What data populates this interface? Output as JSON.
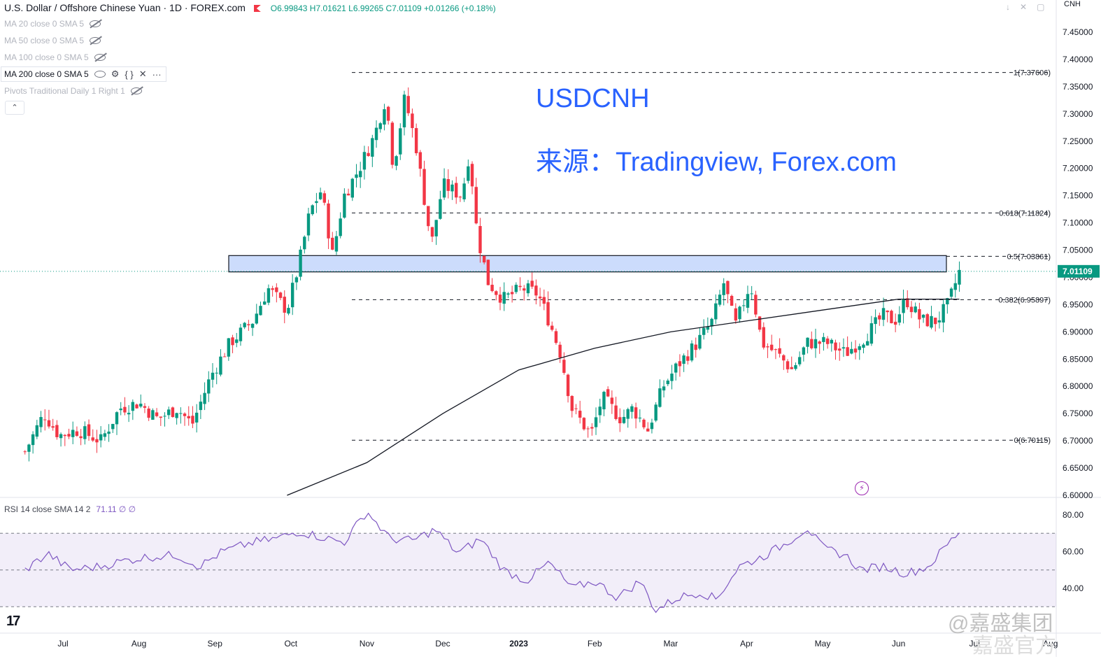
{
  "header": {
    "symbol": "U.S. Dollar / Offshore Chinese Yuan · 1D · FOREX.com",
    "ohlc": "O6.99843 H7.01621 L6.99265 C7.01109 +0.01266 (+0.18%)"
  },
  "unit_label": "CNH",
  "indicators": [
    {
      "label": "MA 20 close 0 SMA 5",
      "visible": false
    },
    {
      "label": "MA 50 close 0 SMA 5",
      "visible": false
    },
    {
      "label": "MA 100 close 0 SMA 5",
      "visible": false
    },
    {
      "label": "MA 200 close 0 SMA 5",
      "visible": true
    },
    {
      "label": "Pivots Traditional Daily 1 Right 1",
      "visible": false
    }
  ],
  "annotation": {
    "title": "USDCNH",
    "source": "来源：Tradingview, Forex.com"
  },
  "rsi": {
    "label": "RSI 14 close SMA 14 2",
    "value": "71.11 ∅ ∅"
  },
  "watermark": "@嘉盛集团",
  "watermark2": "嘉盛官方",
  "logo_text": "17",
  "chart_data": {
    "type": "candlestick",
    "price_axis": {
      "min": 6.6,
      "max": 7.45,
      "ticks": [
        "7.45000",
        "7.40000",
        "7.35000",
        "7.30000",
        "7.25000",
        "7.20000",
        "7.15000",
        "7.10000",
        "7.05000",
        "7.00000",
        "6.95000",
        "6.90000",
        "6.85000",
        "6.80000",
        "6.75000",
        "6.70000",
        "6.65000",
        "6.60000"
      ]
    },
    "last_price": {
      "value": 7.01109,
      "label": "7.01109"
    },
    "x_axis_labels": [
      {
        "label": "Jul",
        "m": 0.5
      },
      {
        "label": "Aug",
        "m": 1.5
      },
      {
        "label": "Sep",
        "m": 2.5
      },
      {
        "label": "Oct",
        "m": 3.5
      },
      {
        "label": "Nov",
        "m": 4.5
      },
      {
        "label": "Dec",
        "m": 5.5
      },
      {
        "label": "2023",
        "m": 6.5
      },
      {
        "label": "Feb",
        "m": 7.5
      },
      {
        "label": "Mar",
        "m": 8.5
      },
      {
        "label": "Apr",
        "m": 9.5
      },
      {
        "label": "May",
        "m": 10.5
      },
      {
        "label": "Jun",
        "m": 11.5
      },
      {
        "label": "Jul",
        "m": 12.5
      },
      {
        "label": "Aug",
        "m": 13.5
      }
    ],
    "fib_levels": [
      {
        "label": "1(7.37606)",
        "value": 7.37606
      },
      {
        "label": "0.618(7.11824)",
        "value": 7.11824
      },
      {
        "label": "0.5(7.03861)",
        "value": 7.03861
      },
      {
        "label": "0.382(6.95897)",
        "value": 6.95897
      },
      {
        "label": "0(6.70115)",
        "value": 6.70115
      }
    ],
    "zone": {
      "from_price": 7.01,
      "to_price": 7.04
    },
    "close_path": [
      [
        0.0,
        6.68
      ],
      [
        0.25,
        6.75
      ],
      [
        0.45,
        6.71
      ],
      [
        0.7,
        6.72
      ],
      [
        1.0,
        6.7
      ],
      [
        1.25,
        6.76
      ],
      [
        1.5,
        6.77
      ],
      [
        1.75,
        6.74
      ],
      [
        2.0,
        6.76
      ],
      [
        2.2,
        6.73
      ],
      [
        2.45,
        6.82
      ],
      [
        2.7,
        6.88
      ],
      [
        3.0,
        6.92
      ],
      [
        3.2,
        6.98
      ],
      [
        3.45,
        6.94
      ],
      [
        3.6,
        7.02
      ],
      [
        3.75,
        7.12
      ],
      [
        3.9,
        7.16
      ],
      [
        4.05,
        7.04
      ],
      [
        4.2,
        7.15
      ],
      [
        4.4,
        7.2
      ],
      [
        4.6,
        7.26
      ],
      [
        4.75,
        7.33
      ],
      [
        4.85,
        7.2
      ],
      [
        5.0,
        7.33
      ],
      [
        5.15,
        7.24
      ],
      [
        5.35,
        7.06
      ],
      [
        5.5,
        7.17
      ],
      [
        5.75,
        7.15
      ],
      [
        5.85,
        7.23
      ],
      [
        5.95,
        7.08
      ],
      [
        6.1,
        6.99
      ],
      [
        6.3,
        6.96
      ],
      [
        6.55,
        6.98
      ],
      [
        6.75,
        6.97
      ],
      [
        6.9,
        6.92
      ],
      [
        7.05,
        6.86
      ],
      [
        7.2,
        6.76
      ],
      [
        7.45,
        6.71
      ],
      [
        7.6,
        6.78
      ],
      [
        7.85,
        6.74
      ],
      [
        8.0,
        6.76
      ],
      [
        8.2,
        6.72
      ],
      [
        8.4,
        6.8
      ],
      [
        8.6,
        6.84
      ],
      [
        8.85,
        6.88
      ],
      [
        9.05,
        6.92
      ],
      [
        9.2,
        6.99
      ],
      [
        9.35,
        6.91
      ],
      [
        9.55,
        6.99
      ],
      [
        9.7,
        6.88
      ],
      [
        9.9,
        6.86
      ],
      [
        10.1,
        6.83
      ],
      [
        10.3,
        6.88
      ],
      [
        10.55,
        6.88
      ],
      [
        10.8,
        6.86
      ],
      [
        11.05,
        6.89
      ],
      [
        11.3,
        6.93
      ],
      [
        11.45,
        6.92
      ],
      [
        11.6,
        6.96
      ],
      [
        11.8,
        6.92
      ],
      [
        12.0,
        6.92
      ],
      [
        12.15,
        6.95
      ],
      [
        12.3,
        7.01
      ]
    ],
    "ma200": [
      [
        3.45,
        6.6
      ],
      [
        4.5,
        6.66
      ],
      [
        5.5,
        6.75
      ],
      [
        6.5,
        6.83
      ],
      [
        7.5,
        6.87
      ],
      [
        8.5,
        6.9
      ],
      [
        9.5,
        6.92
      ],
      [
        10.5,
        6.94
      ],
      [
        11.5,
        6.96
      ],
      [
        12.3,
        6.96
      ]
    ],
    "rsi_axis": {
      "min": 20,
      "max": 85,
      "ticks": [
        "80.00",
        "60.00",
        "40.00"
      ]
    },
    "rsi_band": {
      "upper": 70,
      "middle": 50,
      "lower": 30
    },
    "rsi_path": [
      [
        0.0,
        50
      ],
      [
        0.3,
        59
      ],
      [
        0.6,
        50
      ],
      [
        1.0,
        52
      ],
      [
        1.3,
        55
      ],
      [
        1.6,
        57
      ],
      [
        2.0,
        58
      ],
      [
        2.3,
        52
      ],
      [
        2.6,
        60
      ],
      [
        3.0,
        65
      ],
      [
        3.3,
        67
      ],
      [
        3.6,
        71
      ],
      [
        3.9,
        68
      ],
      [
        4.2,
        65
      ],
      [
        4.5,
        82
      ],
      [
        4.8,
        67
      ],
      [
        5.1,
        66
      ],
      [
        5.4,
        72
      ],
      [
        5.7,
        59
      ],
      [
        6.0,
        67
      ],
      [
        6.3,
        50
      ],
      [
        6.6,
        44
      ],
      [
        6.9,
        54
      ],
      [
        7.2,
        40
      ],
      [
        7.5,
        44
      ],
      [
        7.8,
        35
      ],
      [
        8.1,
        44
      ],
      [
        8.3,
        28
      ],
      [
        8.6,
        35
      ],
      [
        8.9,
        38
      ],
      [
        9.1,
        34
      ],
      [
        9.4,
        52
      ],
      [
        9.7,
        57
      ],
      [
        10.0,
        64
      ],
      [
        10.3,
        73
      ],
      [
        10.5,
        62
      ],
      [
        10.8,
        58
      ],
      [
        11.0,
        50
      ],
      [
        11.3,
        52
      ],
      [
        11.6,
        48
      ],
      [
        11.9,
        52
      ],
      [
        12.1,
        62
      ],
      [
        12.3,
        71
      ]
    ]
  }
}
